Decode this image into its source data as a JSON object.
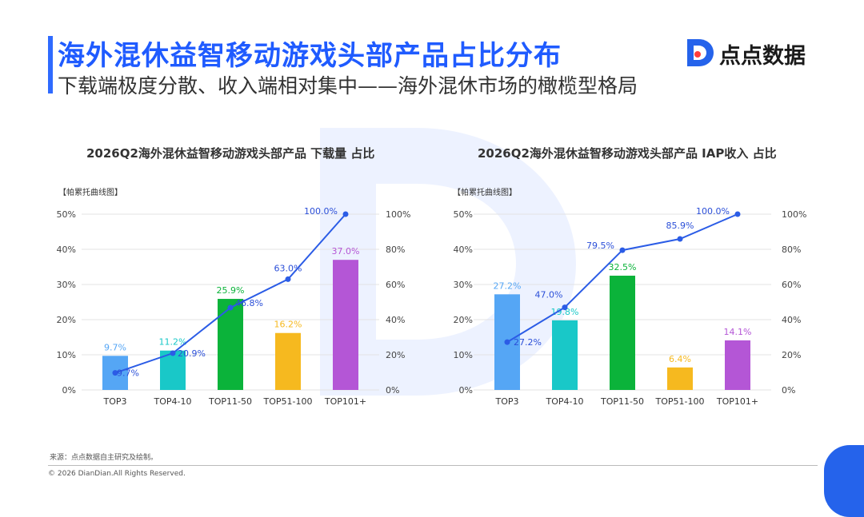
{
  "header": {
    "title": "海外混休益智移动游戏头部产品占比分布",
    "subtitle": "下载端极度分散、收入端相对集中——海外混休市场的橄榄型格局",
    "logo_text": "点点数据"
  },
  "footer": {
    "source": "来源：点点数据自主研究及绘制。",
    "copyright": "© 2026 DianDian.All Rights Reserved."
  },
  "colors": {
    "accent": "#1f5bff",
    "line": "#2b5ce6",
    "bars": [
      "#55a6f5",
      "#19c8c8",
      "#0bb33a",
      "#f6b91f",
      "#b456d6"
    ]
  },
  "chart_data": [
    {
      "type": "bar",
      "title": "2026Q2海外混休益智移动游戏头部产品 下载量 占比",
      "tag": "【帕累托曲线图】",
      "categories": [
        "TOP3",
        "TOP4-10",
        "TOP11-50",
        "TOP51-100",
        "TOP101+"
      ],
      "values": [
        9.7,
        11.2,
        25.9,
        16.2,
        37.0
      ],
      "value_labels": [
        "9.7%",
        "11.2%",
        "25.9%",
        "16.2%",
        "37.0%"
      ],
      "cumulative": [
        9.7,
        20.9,
        46.8,
        63.0,
        100.0
      ],
      "cumulative_labels": [
        "9.7%",
        "20.9%",
        "46.8%",
        "63.0%",
        "100.0%"
      ],
      "ylim": [
        0,
        50
      ],
      "y2lim": [
        0,
        100
      ],
      "yticks": [
        "0%",
        "10%",
        "20%",
        "30%",
        "40%",
        "50%"
      ],
      "y2ticks": [
        "0%",
        "20%",
        "40%",
        "60%",
        "80%",
        "100%"
      ],
      "grid": true
    },
    {
      "type": "bar",
      "title": "2026Q2海外混休益智移动游戏头部产品 IAP收入 占比",
      "tag": "【帕累托曲线图】",
      "categories": [
        "TOP3",
        "TOP4-10",
        "TOP11-50",
        "TOP51-100",
        "TOP101+"
      ],
      "values": [
        27.2,
        19.8,
        32.5,
        6.4,
        14.1
      ],
      "value_labels": [
        "27.2%",
        "19.8%",
        "32.5%",
        "6.4%",
        "14.1%"
      ],
      "cumulative": [
        27.2,
        47.0,
        79.5,
        85.9,
        100.0
      ],
      "cumulative_labels": [
        "27.2%",
        "47.0%",
        "79.5%",
        "85.9%",
        "100.0%"
      ],
      "ylim": [
        0,
        50
      ],
      "y2lim": [
        0,
        100
      ],
      "yticks": [
        "0%",
        "10%",
        "20%",
        "30%",
        "40%",
        "50%"
      ],
      "y2ticks": [
        "0%",
        "20%",
        "40%",
        "60%",
        "80%",
        "100%"
      ],
      "grid": true
    }
  ]
}
